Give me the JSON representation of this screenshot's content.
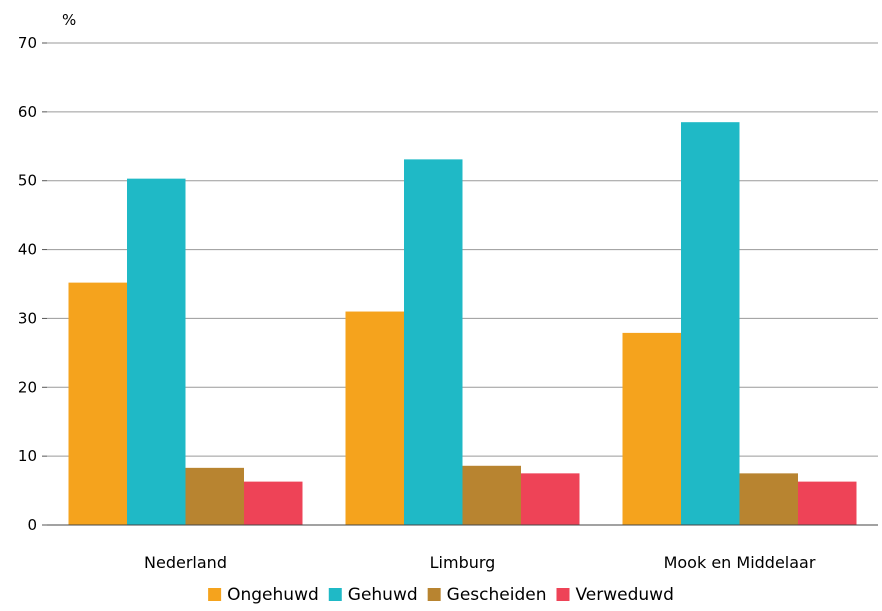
{
  "chart_data": {
    "type": "bar",
    "ylabel": "%",
    "ylim": [
      0,
      70
    ],
    "yticks": [
      0,
      10,
      20,
      30,
      40,
      50,
      60,
      70
    ],
    "grid": true,
    "legend_position": "bottom",
    "categories": [
      "Nederland",
      "Limburg",
      "Mook en Middelaar"
    ],
    "series": [
      {
        "name": "Ongehuwd",
        "color": "#f5a31d",
        "values": [
          35.2,
          31.0,
          27.9
        ]
      },
      {
        "name": "Gehuwd",
        "color": "#1fb9c6",
        "values": [
          50.3,
          53.1,
          58.5
        ]
      },
      {
        "name": "Gescheiden",
        "color": "#b88430",
        "values": [
          8.3,
          8.6,
          7.5
        ]
      },
      {
        "name": "Verweduwd",
        "color": "#ee4357",
        "values": [
          6.3,
          7.5,
          6.3
        ]
      }
    ]
  }
}
